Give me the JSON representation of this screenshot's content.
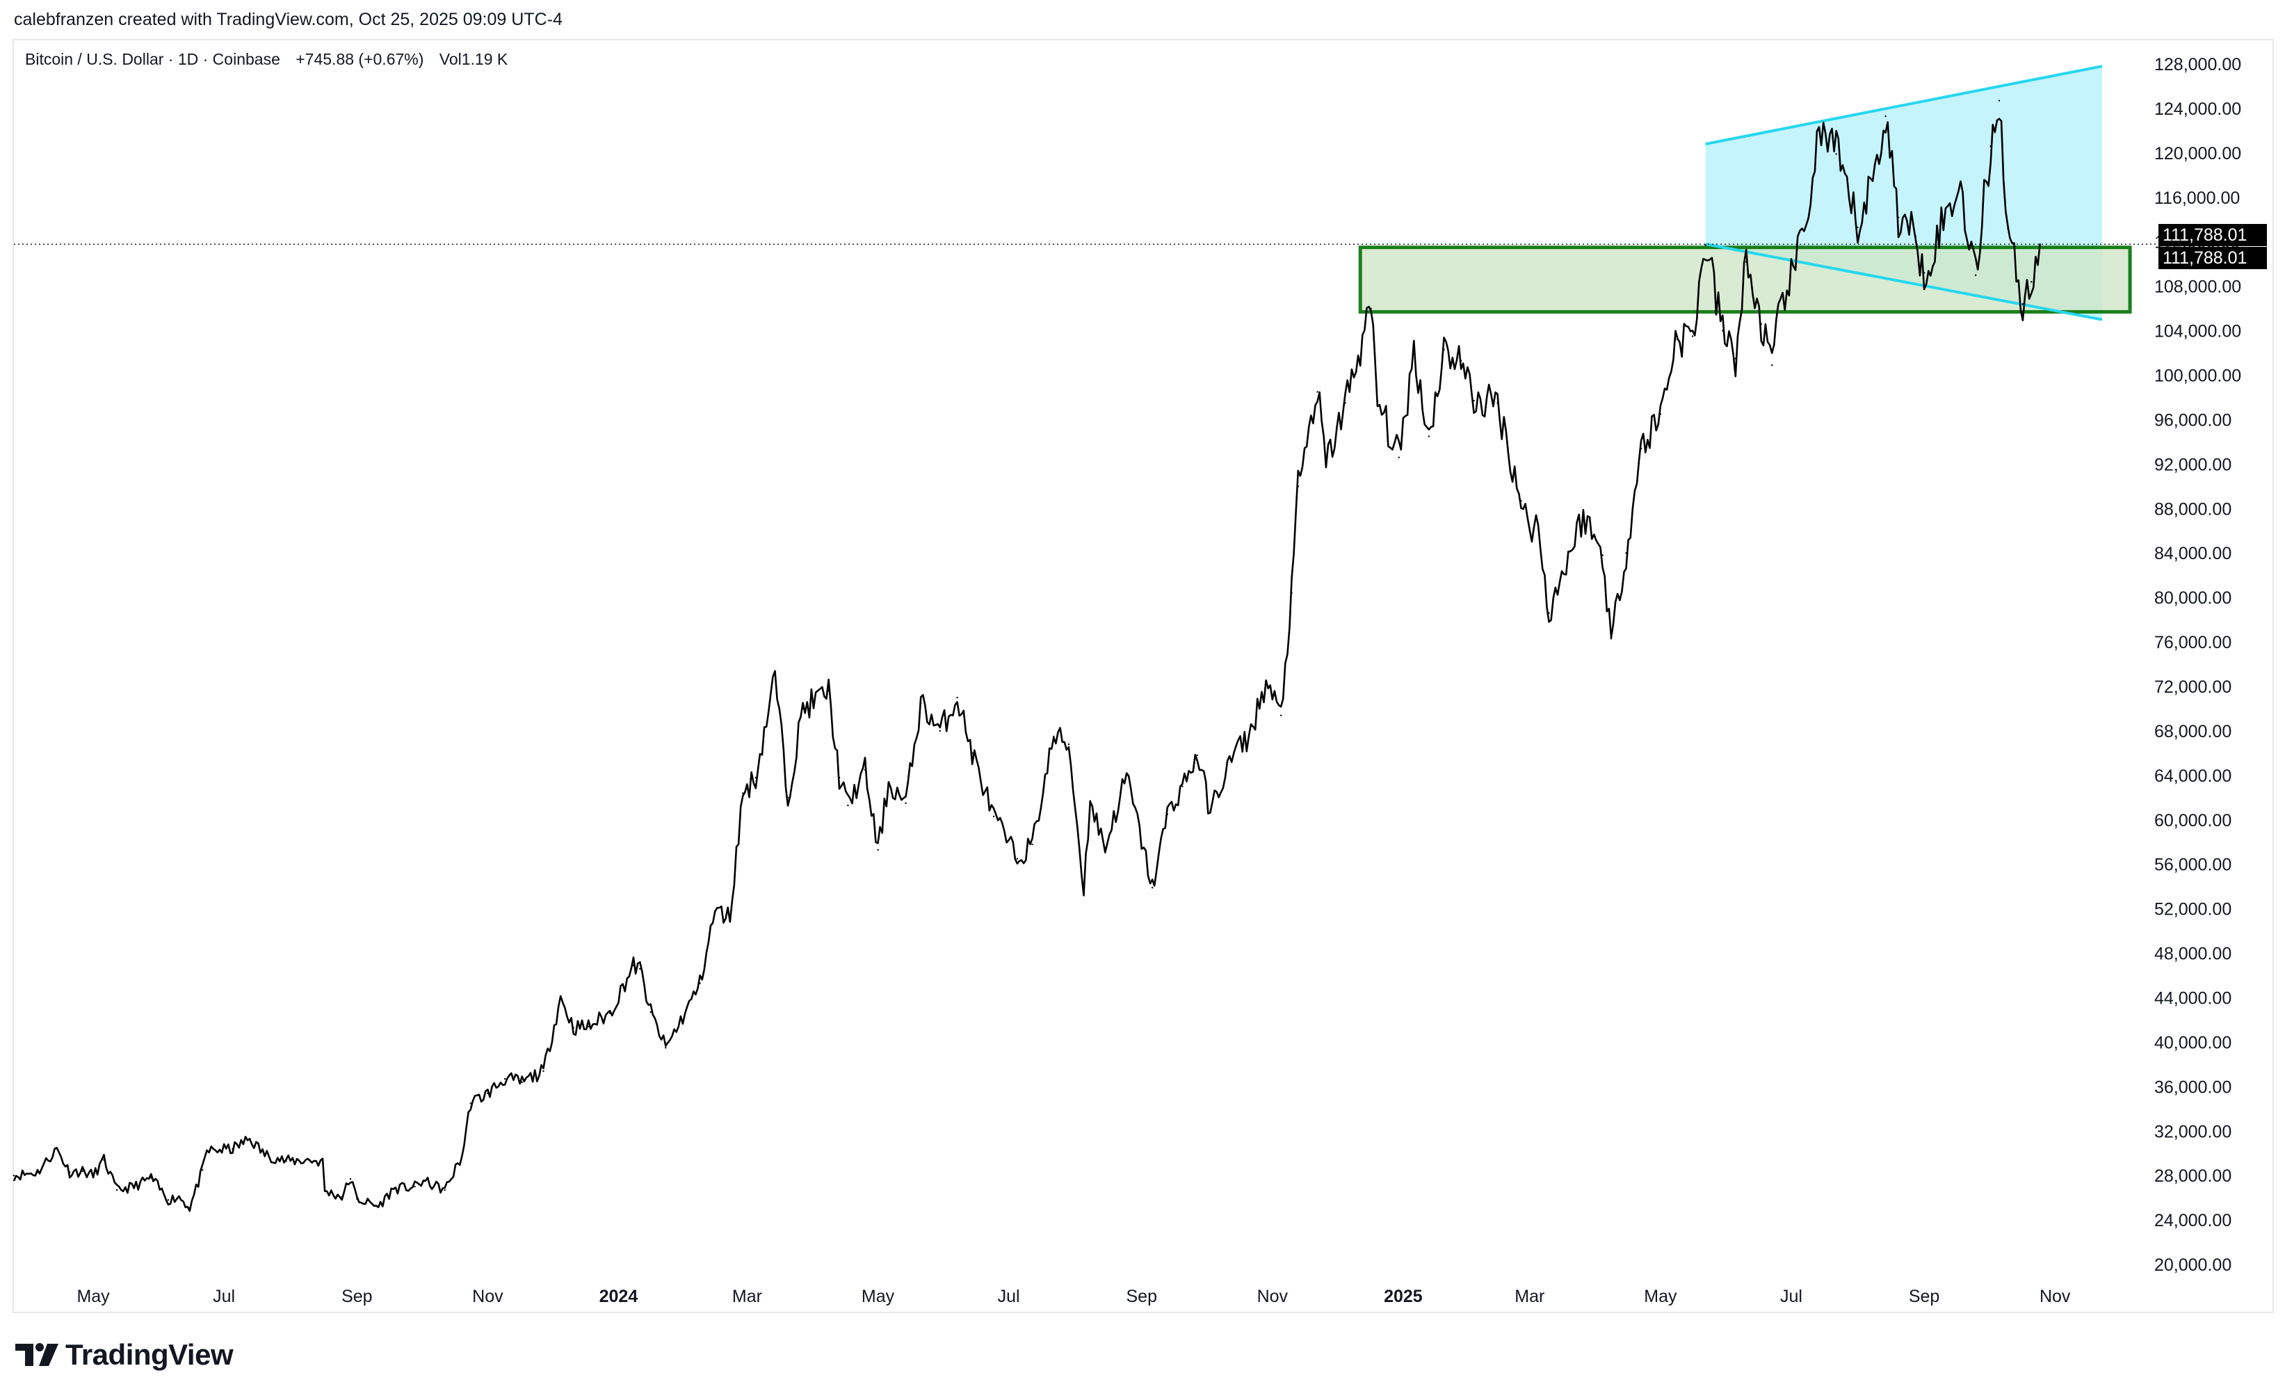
{
  "header": {
    "caption": "calebfranzen created with TradingView.com, Oct 25, 2025 09:09 UTC-4"
  },
  "symbol": {
    "name": "Bitcoin / U.S. Dollar · 1D · Coinbase",
    "change": "+745.88 (+0.67%)",
    "volume": "Vol1.19 K"
  },
  "price_labels": {
    "last_price_1": "111,788.01",
    "last_price_2": "111,788.01"
  },
  "branding": {
    "logo_text": "TradingView",
    "logo_icon": "tradingview-logo-icon"
  },
  "colors": {
    "candle": "#000000",
    "channel_fill": "#b2f0fb",
    "channel_line": "#26d7ef",
    "zone_fill": "#cfe6c7",
    "zone_border": "#1a7f1a",
    "price_label_bg": "#000000",
    "price_label_text": "#ffffff",
    "axis_text": "#131722"
  },
  "chart_data": {
    "type": "line",
    "title": "Bitcoin / U.S. Dollar · 1D · Coinbase",
    "xlabel": "",
    "ylabel": "",
    "ylim": [
      18000,
      130000
    ],
    "grid": false,
    "y_ticks": [
      "128,000.00",
      "124,000.00",
      "120,000.00",
      "116,000.00",
      "112,000.00",
      "108,000.00",
      "104,000.00",
      "100,000.00",
      "96,000.00",
      "92,000.00",
      "88,000.00",
      "84,000.00",
      "80,000.00",
      "76,000.00",
      "72,000.00",
      "68,000.00",
      "64,000.00",
      "60,000.00",
      "56,000.00",
      "52,000.00",
      "48,000.00",
      "44,000.00",
      "40,000.00",
      "36,000.00",
      "32,000.00",
      "28,000.00",
      "24,000.00",
      "20,000.00"
    ],
    "x_ticks": [
      {
        "label": "May",
        "date": "2023-05-01",
        "bold": false
      },
      {
        "label": "Jul",
        "date": "2023-07-01",
        "bold": false
      },
      {
        "label": "Sep",
        "date": "2023-09-01",
        "bold": false
      },
      {
        "label": "Nov",
        "date": "2023-11-01",
        "bold": false
      },
      {
        "label": "2024",
        "date": "2024-01-01",
        "bold": true
      },
      {
        "label": "Mar",
        "date": "2024-03-01",
        "bold": false
      },
      {
        "label": "May",
        "date": "2024-05-01",
        "bold": false
      },
      {
        "label": "Jul",
        "date": "2024-07-01",
        "bold": false
      },
      {
        "label": "Sep",
        "date": "2024-09-01",
        "bold": false
      },
      {
        "label": "Nov",
        "date": "2024-11-01",
        "bold": false
      },
      {
        "label": "2025",
        "date": "2025-01-01",
        "bold": true
      },
      {
        "label": "Mar",
        "date": "2025-03-01",
        "bold": false
      },
      {
        "label": "May",
        "date": "2025-05-01",
        "bold": false
      },
      {
        "label": "Jul",
        "date": "2025-07-01",
        "bold": false
      },
      {
        "label": "Sep",
        "date": "2025-09-01",
        "bold": false
      },
      {
        "label": "Nov",
        "date": "2025-11-01",
        "bold": false
      }
    ],
    "x_range": [
      "2023-03-25",
      "2025-12-05"
    ],
    "last_price": 111788.01,
    "series": [
      {
        "values": [
          {
            "x": "2023-03-25",
            "y": 28000
          },
          {
            "x": "2023-04-05",
            "y": 28300
          },
          {
            "x": "2023-04-14",
            "y": 30400
          },
          {
            "x": "2023-04-20",
            "y": 28300
          },
          {
            "x": "2023-04-26",
            "y": 28400
          },
          {
            "x": "2023-05-01",
            "y": 28000
          },
          {
            "x": "2023-05-06",
            "y": 29400
          },
          {
            "x": "2023-05-12",
            "y": 26700
          },
          {
            "x": "2023-05-20",
            "y": 27000
          },
          {
            "x": "2023-05-28",
            "y": 27800
          },
          {
            "x": "2023-06-05",
            "y": 25800
          },
          {
            "x": "2023-06-10",
            "y": 26100
          },
          {
            "x": "2023-06-15",
            "y": 25100
          },
          {
            "x": "2023-06-21",
            "y": 28500
          },
          {
            "x": "2023-06-23",
            "y": 30200
          },
          {
            "x": "2023-07-05",
            "y": 30400
          },
          {
            "x": "2023-07-13",
            "y": 31300
          },
          {
            "x": "2023-07-20",
            "y": 29900
          },
          {
            "x": "2023-07-30",
            "y": 29300
          },
          {
            "x": "2023-08-10",
            "y": 29400
          },
          {
            "x": "2023-08-16",
            "y": 29200
          },
          {
            "x": "2023-08-17",
            "y": 26600
          },
          {
            "x": "2023-08-25",
            "y": 26100
          },
          {
            "x": "2023-08-29",
            "y": 27700
          },
          {
            "x": "2023-09-01",
            "y": 25900
          },
          {
            "x": "2023-09-11",
            "y": 25200
          },
          {
            "x": "2023-09-18",
            "y": 26800
          },
          {
            "x": "2023-09-28",
            "y": 27000
          },
          {
            "x": "2023-10-02",
            "y": 27500
          },
          {
            "x": "2023-10-12",
            "y": 26700
          },
          {
            "x": "2023-10-20",
            "y": 29700
          },
          {
            "x": "2023-10-24",
            "y": 34500
          },
          {
            "x": "2023-11-01",
            "y": 35400
          },
          {
            "x": "2023-11-09",
            "y": 36700
          },
          {
            "x": "2023-11-17",
            "y": 36400
          },
          {
            "x": "2023-11-27",
            "y": 37400
          },
          {
            "x": "2023-12-05",
            "y": 44000
          },
          {
            "x": "2023-12-11",
            "y": 41300
          },
          {
            "x": "2023-12-18",
            "y": 41400
          },
          {
            "x": "2023-12-28",
            "y": 42600
          },
          {
            "x": "2024-01-08",
            "y": 46900
          },
          {
            "x": "2024-01-11",
            "y": 46600
          },
          {
            "x": "2024-01-16",
            "y": 42700
          },
          {
            "x": "2024-01-23",
            "y": 39500
          },
          {
            "x": "2024-02-01",
            "y": 42600
          },
          {
            "x": "2024-02-08",
            "y": 45300
          },
          {
            "x": "2024-02-15",
            "y": 51800
          },
          {
            "x": "2024-02-22",
            "y": 51300
          },
          {
            "x": "2024-02-28",
            "y": 62400
          },
          {
            "x": "2024-03-05",
            "y": 63800
          },
          {
            "x": "2024-03-14",
            "y": 73000
          },
          {
            "x": "2024-03-20",
            "y": 62000
          },
          {
            "x": "2024-03-27",
            "y": 70000
          },
          {
            "x": "2024-04-08",
            "y": 71600
          },
          {
            "x": "2024-04-13",
            "y": 63800
          },
          {
            "x": "2024-04-17",
            "y": 61300
          },
          {
            "x": "2024-04-25",
            "y": 64500
          },
          {
            "x": "2024-05-01",
            "y": 57300
          },
          {
            "x": "2024-05-06",
            "y": 63300
          },
          {
            "x": "2024-05-14",
            "y": 61500
          },
          {
            "x": "2024-05-21",
            "y": 70500
          },
          {
            "x": "2024-05-30",
            "y": 68000
          },
          {
            "x": "2024-06-07",
            "y": 71000
          },
          {
            "x": "2024-06-14",
            "y": 66000
          },
          {
            "x": "2024-06-24",
            "y": 60300
          },
          {
            "x": "2024-07-05",
            "y": 56500
          },
          {
            "x": "2024-07-12",
            "y": 57800
          },
          {
            "x": "2024-07-22",
            "y": 67500
          },
          {
            "x": "2024-07-29",
            "y": 66800
          },
          {
            "x": "2024-08-05",
            "y": 53800
          },
          {
            "x": "2024-08-08",
            "y": 61700
          },
          {
            "x": "2024-08-15",
            "y": 57500
          },
          {
            "x": "2024-08-25",
            "y": 64000
          },
          {
            "x": "2024-09-06",
            "y": 53900
          },
          {
            "x": "2024-09-13",
            "y": 60500
          },
          {
            "x": "2024-09-20",
            "y": 63000
          },
          {
            "x": "2024-09-27",
            "y": 65800
          },
          {
            "x": "2024-10-03",
            "y": 60800
          },
          {
            "x": "2024-10-14",
            "y": 66000
          },
          {
            "x": "2024-10-21",
            "y": 67400
          },
          {
            "x": "2024-10-29",
            "y": 72300
          },
          {
            "x": "2024-11-05",
            "y": 69400
          },
          {
            "x": "2024-11-10",
            "y": 80400
          },
          {
            "x": "2024-11-13",
            "y": 90000
          },
          {
            "x": "2024-11-22",
            "y": 98500
          },
          {
            "x": "2024-11-26",
            "y": 91900
          },
          {
            "x": "2024-12-05",
            "y": 97500
          },
          {
            "x": "2024-12-17",
            "y": 106000
          },
          {
            "x": "2024-12-20",
            "y": 97700
          },
          {
            "x": "2024-12-30",
            "y": 92600
          },
          {
            "x": "2025-01-06",
            "y": 102100
          },
          {
            "x": "2025-01-13",
            "y": 94500
          },
          {
            "x": "2025-01-20",
            "y": 102300
          },
          {
            "x": "2025-01-28",
            "y": 101300
          },
          {
            "x": "2025-02-03",
            "y": 97700
          },
          {
            "x": "2025-02-14",
            "y": 97500
          },
          {
            "x": "2025-02-25",
            "y": 88700
          },
          {
            "x": "2025-03-01",
            "y": 86000
          },
          {
            "x": "2025-03-04",
            "y": 87200
          },
          {
            "x": "2025-03-10",
            "y": 78600
          },
          {
            "x": "2025-03-20",
            "y": 84200
          },
          {
            "x": "2025-03-26",
            "y": 87400
          },
          {
            "x": "2025-04-04",
            "y": 83800
          },
          {
            "x": "2025-04-08",
            "y": 76300
          },
          {
            "x": "2025-04-15",
            "y": 84000
          },
          {
            "x": "2025-04-22",
            "y": 93400
          },
          {
            "x": "2025-05-01",
            "y": 96500
          },
          {
            "x": "2025-05-08",
            "y": 103200
          },
          {
            "x": "2025-05-16",
            "y": 103500
          },
          {
            "x": "2025-05-22",
            "y": 111700
          },
          {
            "x": "2025-05-30",
            "y": 104000
          },
          {
            "x": "2025-06-05",
            "y": 101500
          },
          {
            "x": "2025-06-10",
            "y": 110200
          },
          {
            "x": "2025-06-17",
            "y": 104600
          },
          {
            "x": "2025-06-22",
            "y": 100900
          },
          {
            "x": "2025-06-27",
            "y": 107100
          },
          {
            "x": "2025-07-03",
            "y": 109600
          },
          {
            "x": "2025-07-11",
            "y": 117500
          },
          {
            "x": "2025-07-14",
            "y": 122000
          },
          {
            "x": "2025-07-22",
            "y": 119900
          },
          {
            "x": "2025-08-01",
            "y": 113300
          },
          {
            "x": "2025-08-08",
            "y": 117500
          },
          {
            "x": "2025-08-14",
            "y": 123300
          },
          {
            "x": "2025-08-20",
            "y": 114200
          },
          {
            "x": "2025-08-28",
            "y": 112500
          },
          {
            "x": "2025-09-01",
            "y": 109200
          },
          {
            "x": "2025-09-10",
            "y": 113900
          },
          {
            "x": "2025-09-18",
            "y": 117100
          },
          {
            "x": "2025-09-25",
            "y": 109000
          },
          {
            "x": "2025-10-02",
            "y": 120600
          },
          {
            "x": "2025-10-06",
            "y": 124700
          },
          {
            "x": "2025-10-10",
            "y": 113200
          },
          {
            "x": "2025-10-17",
            "y": 106400
          },
          {
            "x": "2025-10-21",
            "y": 108400
          },
          {
            "x": "2025-10-25",
            "y": 111788
          }
        ]
      }
    ],
    "overlays": [
      {
        "kind": "ascending-channel-top",
        "from": {
          "x": "2025-05-22",
          "y": 120800
        },
        "to": {
          "x": "2025-11-23",
          "y": 127800
        }
      },
      {
        "kind": "channel-bottom",
        "from": {
          "x": "2025-05-22",
          "y": 111800
        },
        "to": {
          "x": "2025-11-23",
          "y": 105000
        }
      },
      {
        "kind": "support-zone",
        "from": {
          "x": "2024-12-12",
          "y": 105700
        },
        "to": {
          "x": "2025-12-06",
          "y": 111500
        }
      }
    ]
  }
}
